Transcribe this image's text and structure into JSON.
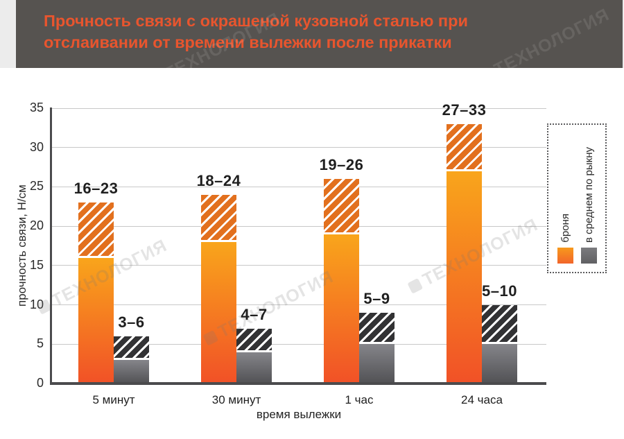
{
  "header": {
    "title_line1": "Прочность связи с окрашеной кузовной сталью при",
    "title_line2": "отслаивании от времени вылежки после прикатки",
    "bg_color": "#565350",
    "accent_color": "#e8552e"
  },
  "watermark": {
    "text": "ТЕХНОЛОГИЯ"
  },
  "chart_data": {
    "type": "bar",
    "title": "Прочность связи с окрашеной кузовной сталью при отслаивании от времени вылежки после прикатки",
    "categories": [
      "5 минут",
      "30 минут",
      "1 час",
      "24 часа"
    ],
    "xlabel": "время вылежки",
    "ylabel": "прочность связи, Н/см",
    "ylim": [
      0,
      35
    ],
    "yticks": [
      0,
      5,
      10,
      15,
      20,
      25,
      30,
      35
    ],
    "grid": true,
    "legend_position": "right",
    "series": [
      {
        "name": "броня",
        "key": "bronya",
        "ranges": [
          [
            16,
            23
          ],
          [
            18,
            24
          ],
          [
            19,
            26
          ],
          [
            27,
            33
          ]
        ],
        "range_labels": [
          "16–23",
          "18–24",
          "19–26",
          "27–33"
        ],
        "colors": {
          "solid_top": "#f9a51b",
          "solid_bottom": "#f15127",
          "hatch": "#e2701e"
        }
      },
      {
        "name": "в среднем по рыкну",
        "key": "market-average",
        "ranges": [
          [
            3,
            6
          ],
          [
            4,
            7
          ],
          [
            5,
            9
          ],
          [
            5,
            10
          ]
        ],
        "range_labels": [
          "3–6",
          "4–7",
          "5–9",
          "5–10"
        ],
        "colors": {
          "solid_top": "#85858a",
          "solid_bottom": "#515154",
          "hatch": "#323234"
        }
      }
    ]
  }
}
